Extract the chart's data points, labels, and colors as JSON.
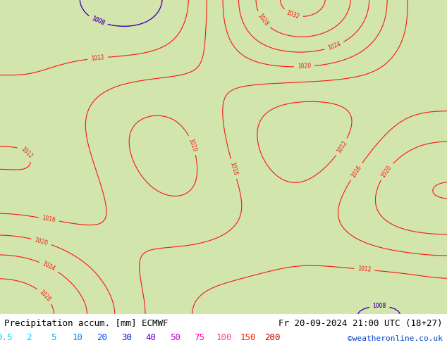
{
  "title_left": "Precipitation accum. [mm] ECMWF",
  "title_right": "Fr 20-09-2024 21:00 UTC (18+27)",
  "credit": "©weatheronline.co.uk",
  "colorbar_values": [
    "0.5",
    "2",
    "5",
    "10",
    "20",
    "30",
    "40",
    "50",
    "75",
    "100",
    "150",
    "200"
  ],
  "colorbar_label_colors": [
    "#00ccff",
    "#00ccff",
    "#00aaff",
    "#0088ff",
    "#0055ff",
    "#0022cc",
    "#6600cc",
    "#cc00cc",
    "#ff00aa",
    "#ff44aa",
    "#ff2200",
    "#cc0000"
  ],
  "bg_color": "#ffffff",
  "title_fontsize": 9,
  "credit_fontsize": 8,
  "colorbar_fontsize": 9
}
